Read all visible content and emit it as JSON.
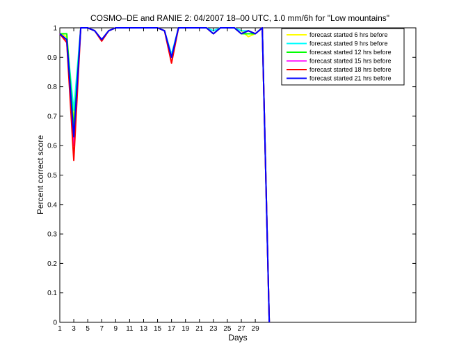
{
  "chart_data": {
    "type": "line",
    "title": "COSMO–DE and RANIE 2: 04/2007 18–00 UTC, 1.0 mm/6h for \"Low mountains\"",
    "xlabel": "Days",
    "ylabel": "Percent correct score",
    "xlim": [
      1,
      52
    ],
    "ylim": [
      0,
      1
    ],
    "xticks": [
      1,
      3,
      5,
      7,
      9,
      11,
      13,
      15,
      17,
      19,
      21,
      23,
      25,
      27,
      29
    ],
    "yticks": [
      0,
      0.1,
      0.2,
      0.3,
      0.4,
      0.5,
      0.6,
      0.7,
      0.8,
      0.9,
      1
    ],
    "ytick_labels": [
      "0",
      "0.1",
      "0.2",
      "0.3",
      "0.4",
      "0.5",
      "0.6",
      "0.7",
      "0.8",
      "0.9",
      "1"
    ],
    "grid": false,
    "legend_position": "top-right",
    "x": [
      1,
      2,
      3,
      4,
      5,
      6,
      7,
      8,
      9,
      10,
      11,
      12,
      13,
      14,
      15,
      16,
      17,
      18,
      19,
      20,
      21,
      22,
      23,
      24,
      25,
      26,
      27,
      28,
      29,
      30,
      31
    ],
    "series": [
      {
        "name": "forecast started 6 hrs before",
        "color": "#ffff00",
        "values": [
          0.98,
          0.97,
          0.68,
          1,
          1,
          0.99,
          0.96,
          0.99,
          1,
          1,
          1,
          1,
          1,
          1,
          1,
          0.99,
          0.9,
          1,
          1,
          1,
          1,
          1,
          0.98,
          1,
          1,
          1,
          0.99,
          0.97,
          0.98,
          1,
          0
        ]
      },
      {
        "name": "forecast started 9 hrs before",
        "color": "#00ffff",
        "values": [
          0.98,
          0.96,
          0.72,
          1,
          1,
          0.99,
          0.96,
          0.99,
          1,
          1,
          1,
          1,
          1,
          1,
          1,
          0.99,
          0.91,
          1,
          1,
          1,
          1,
          1,
          0.99,
          1,
          1,
          1,
          0.99,
          0.99,
          0.98,
          1,
          0
        ]
      },
      {
        "name": "forecast started 12 hrs before",
        "color": "#00ff00",
        "values": [
          0.98,
          0.98,
          0.66,
          1,
          1,
          0.99,
          0.96,
          0.99,
          1,
          1,
          1,
          1,
          1,
          1,
          1,
          0.99,
          0.9,
          1,
          1,
          1,
          1,
          1,
          0.98,
          1,
          1,
          1,
          0.98,
          0.98,
          0.98,
          1,
          0
        ]
      },
      {
        "name": "forecast started 15 hrs before",
        "color": "#ff00ff",
        "values": [
          0.98,
          0.95,
          0.6,
          1,
          1,
          0.99,
          0.96,
          0.99,
          1,
          1,
          1,
          1,
          1,
          1,
          1,
          0.99,
          0.9,
          1,
          1,
          1,
          1,
          1,
          0.98,
          1,
          1,
          1,
          0.98,
          0.99,
          0.98,
          1,
          0
        ]
      },
      {
        "name": "forecast started 18 hrs before",
        "color": "#ff0000",
        "values": [
          0.98,
          0.95,
          0.55,
          1,
          1,
          0.99,
          0.955,
          0.99,
          1,
          1,
          1,
          1,
          1,
          1,
          1,
          0.99,
          0.88,
          1,
          1,
          1,
          1,
          1,
          0.98,
          1,
          1,
          1,
          0.98,
          0.99,
          0.98,
          1,
          0
        ]
      },
      {
        "name": "forecast started 21 hrs before",
        "color": "#0000ff",
        "values": [
          0.98,
          0.96,
          0.63,
          1,
          1,
          0.99,
          0.96,
          0.99,
          1,
          1,
          1,
          1,
          1,
          1,
          1,
          0.99,
          0.9,
          1,
          1,
          1,
          1,
          1,
          0.98,
          1,
          1,
          1,
          0.98,
          0.99,
          0.98,
          1,
          0
        ]
      }
    ]
  }
}
